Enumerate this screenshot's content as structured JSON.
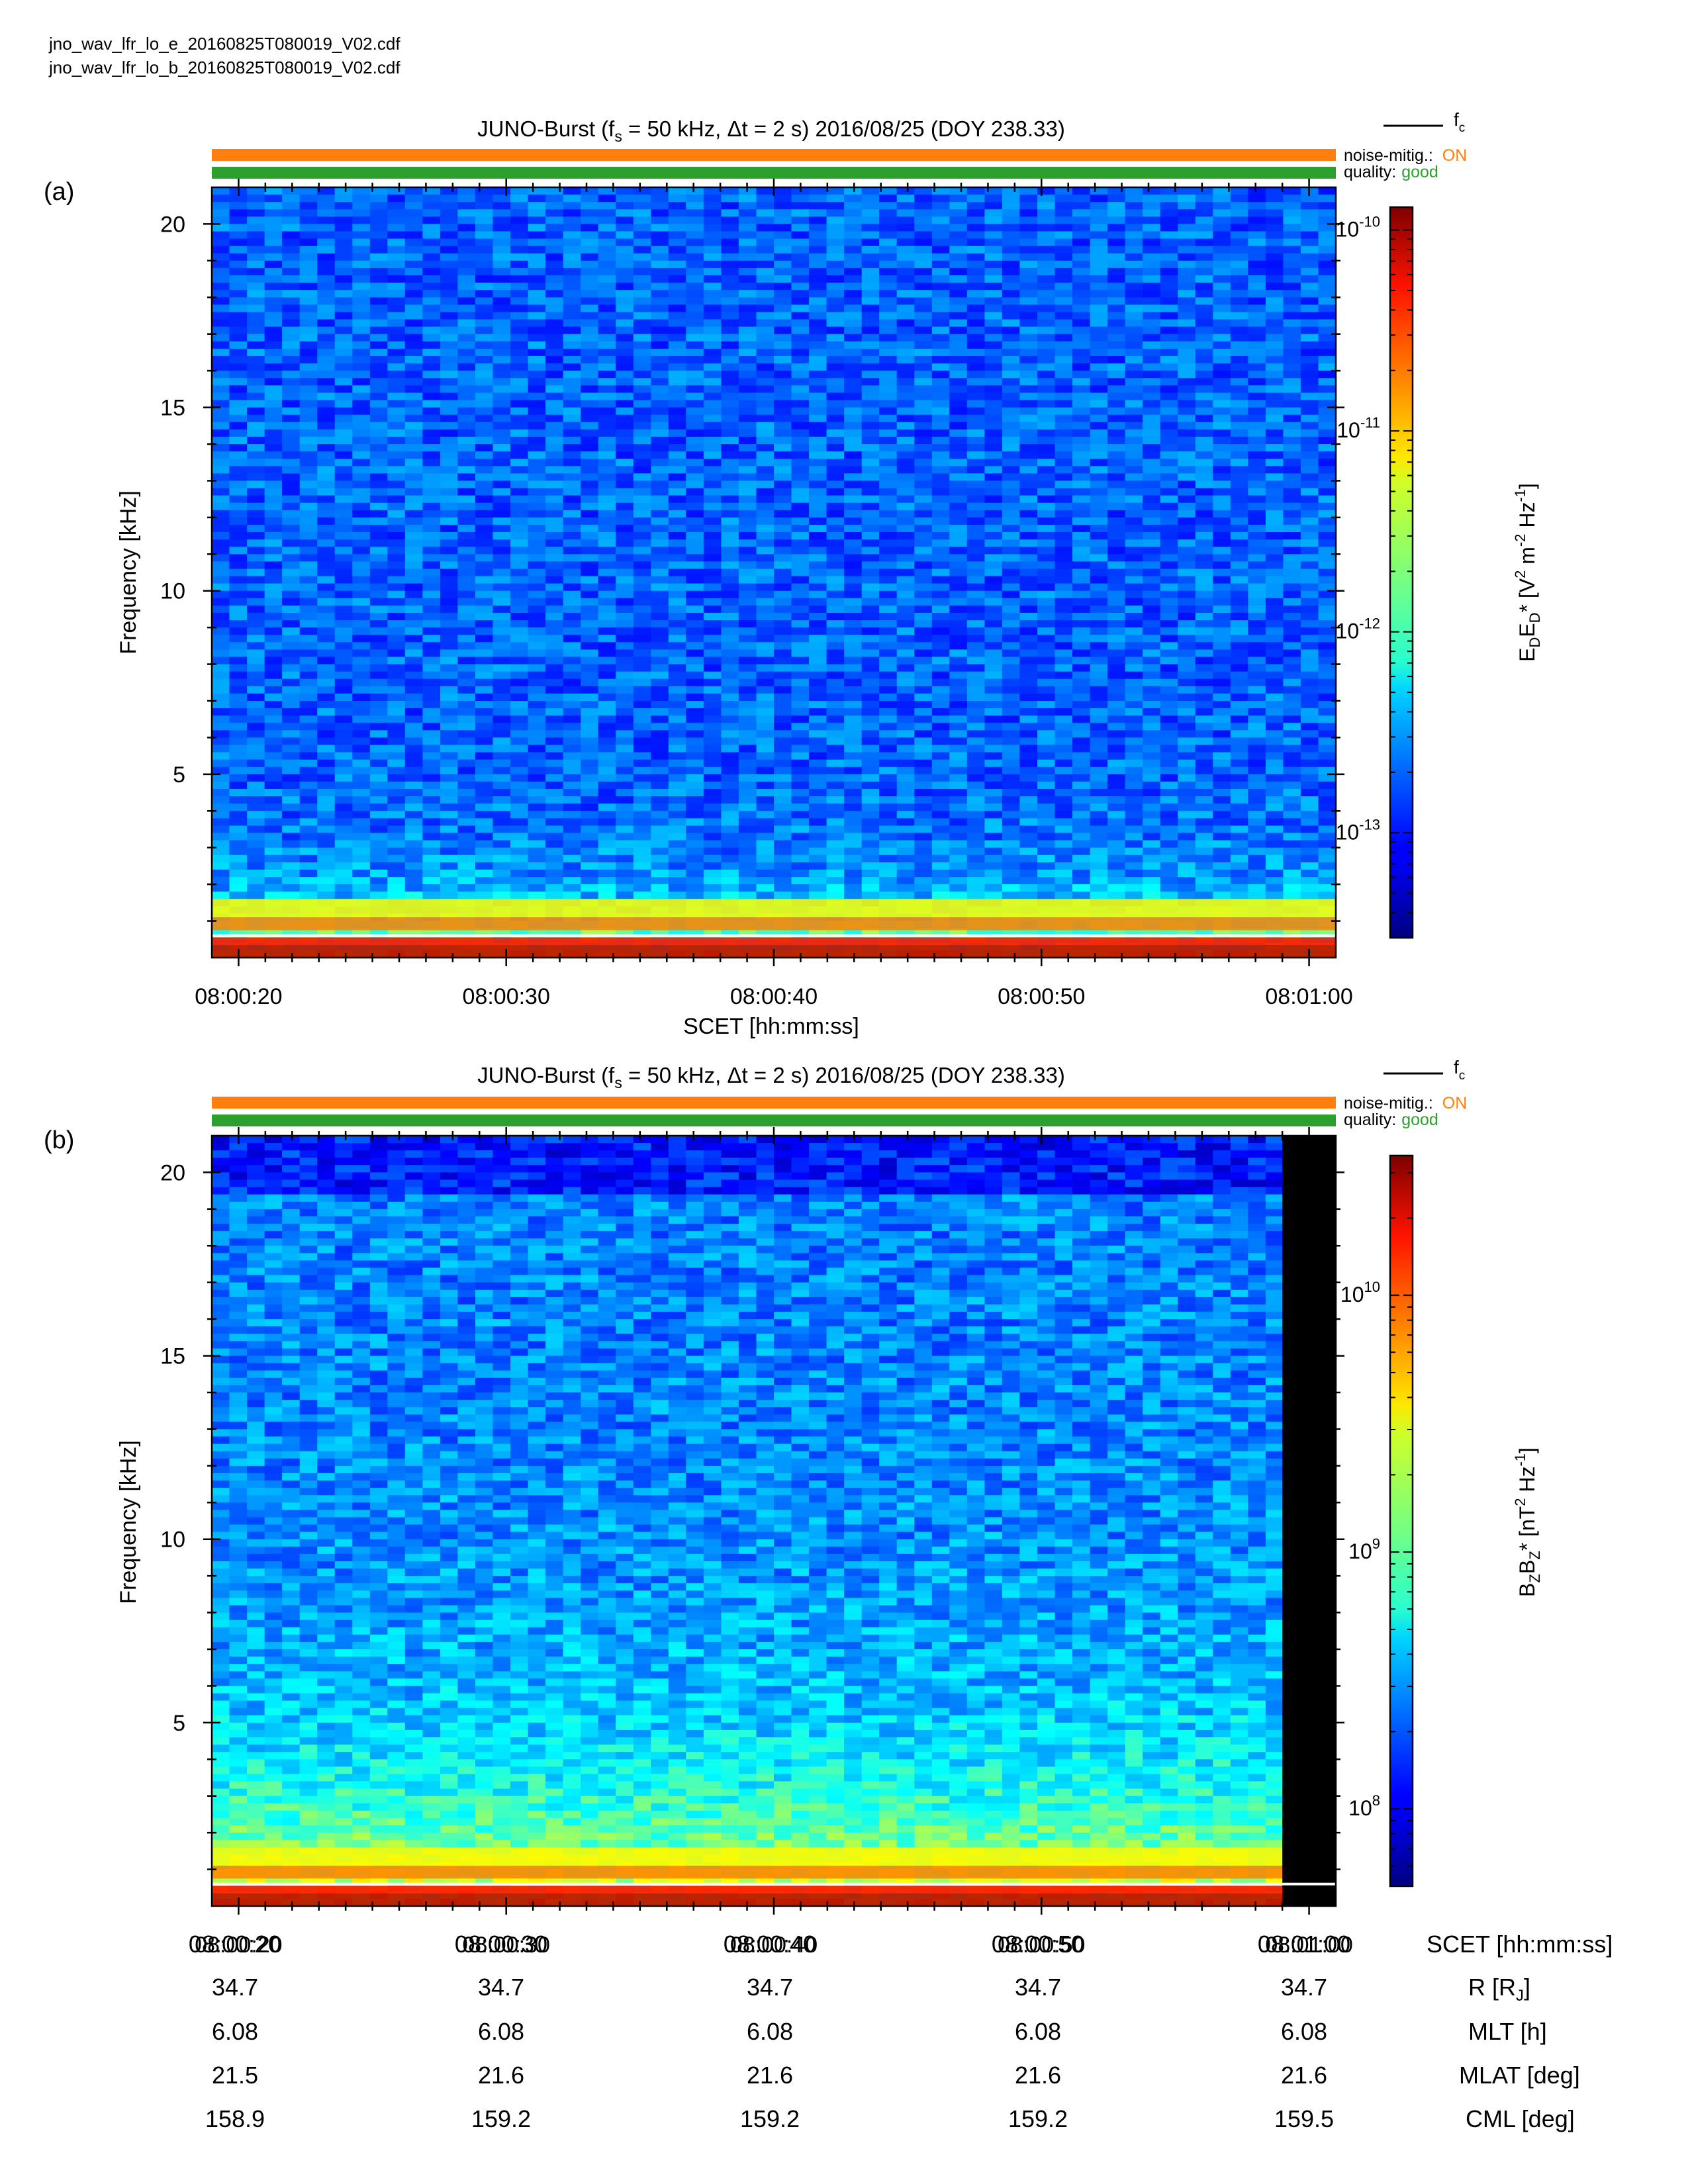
{
  "files": [
    "jno_wav_lfr_lo_e_20160825T080019_V02.cdf",
    "jno_wav_lfr_lo_b_20160825T080019_V02.cdf"
  ],
  "legend_fc": "f",
  "legend_fc_sub": "c",
  "noise_label": "noise-mitig.:",
  "noise_value": "ON",
  "quality_label": "quality:",
  "quality_value": "good",
  "colors": {
    "noise": "#ff7f0e",
    "quality": "#2ca02c",
    "fc_line": "#ffffff",
    "no_data": "#000000"
  },
  "colormap": "jet",
  "x_ticks": [
    "08:00:20",
    "08:00:30",
    "08:00:40",
    "08:00:50",
    "08:01:00"
  ],
  "y_ticks": [
    "5",
    "10",
    "15",
    "20"
  ],
  "ephemeris": {
    "labels": [
      "SCET [hh:mm:ss]",
      "R [R",
      "MLT [h]",
      "MLAT [deg]",
      "CML [deg]"
    ],
    "rows": [
      [
        "34.7",
        "34.7",
        "34.7",
        "34.7",
        "34.7"
      ],
      [
        "6.08",
        "6.08",
        "6.08",
        "6.08",
        "6.08"
      ],
      [
        "21.5",
        "21.6",
        "21.6",
        "21.6",
        "21.6"
      ],
      [
        "158.9",
        "159.2",
        "159.2",
        "159.2",
        "159.5"
      ]
    ]
  },
  "chart_data": [
    {
      "type": "heatmap",
      "panel": "(a)",
      "title": "JUNO-Burst (f",
      "title_sub": "s",
      "title_rest": " = 50 kHz, Δt = 2 s)  2016/08/25 (DOY 238.33)",
      "xlabel": "SCET [hh:mm:ss]",
      "ylabel": "Frequency [kHz]",
      "x_start": "08:00:19",
      "x_end": "08:01:01",
      "ylim": [
        0,
        21
      ],
      "cbar_label": "E_D E_D* [V^2 m^-2 Hz^-1]",
      "cbar_scale": "log",
      "cbar_range": [
        3e-14,
        1.3e-10
      ],
      "cbar_ticks": [
        {
          "base": "10",
          "exp": "-10",
          "value": 1e-10
        },
        {
          "base": "10",
          "exp": "-11",
          "value": 1e-11
        },
        {
          "base": "10",
          "exp": "-12",
          "value": 1e-12
        },
        {
          "base": "10",
          "exp": "-13",
          "value": 1e-13
        }
      ],
      "fc_khz": 0.6,
      "background_level": 0.22,
      "low_freq_level": 0.95,
      "no_data_after": null
    },
    {
      "type": "heatmap",
      "panel": "(b)",
      "title": "JUNO-Burst (f",
      "title_sub": "s",
      "title_rest": " = 50 kHz, Δt = 2 s)  2016/08/25 (DOY 238.33)",
      "xlabel": "SCET [hh:mm:ss]",
      "ylabel": "Frequency [kHz]",
      "x_start": "08:00:19",
      "x_end": "08:01:01",
      "ylim": [
        0,
        21
      ],
      "cbar_label": "B_Z B_Z* [nT^2 Hz^-1]",
      "cbar_scale": "log",
      "cbar_range": [
        50000000.0,
        35000000000.0
      ],
      "cbar_ticks": [
        {
          "base": "10",
          "exp": "10",
          "value": 10000000000.0
        },
        {
          "base": "10",
          "exp": "9",
          "value": 1000000000.0
        },
        {
          "base": "10",
          "exp": "8",
          "value": 100000000.0
        }
      ],
      "fc_khz": 0.6,
      "background_level": 0.25,
      "low_freq_level": 0.95,
      "no_data_after": "08:00:59"
    }
  ]
}
